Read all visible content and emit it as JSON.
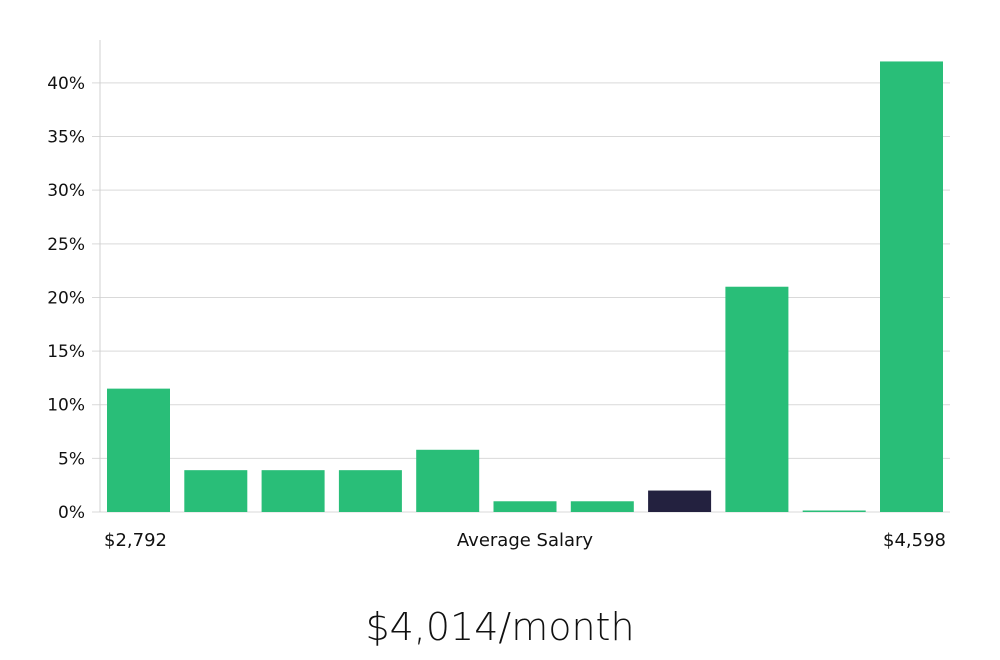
{
  "chart_data": {
    "type": "bar",
    "categories": [
      "1",
      "2",
      "3",
      "4",
      "5",
      "6",
      "7",
      "8",
      "9",
      "10",
      "11"
    ],
    "values": [
      11.5,
      3.9,
      3.9,
      3.9,
      5.8,
      1.0,
      1.0,
      2.0,
      21.0,
      0.1,
      42.0
    ],
    "highlight_index": 7,
    "ylim": [
      0,
      44
    ],
    "yticks": [
      0,
      5,
      10,
      15,
      20,
      25,
      30,
      35,
      40
    ],
    "ytick_suffix": "%",
    "grid": true,
    "xlabel": "Average Salary",
    "x_min_label": "$2,792",
    "x_max_label": "$4,598",
    "colors": {
      "bar": "#29be78",
      "highlight": "#23213f",
      "grid": "#d9d9d9",
      "axis": "#d0d0d0"
    }
  },
  "summary": {
    "salary_text": "$4,014/month"
  }
}
